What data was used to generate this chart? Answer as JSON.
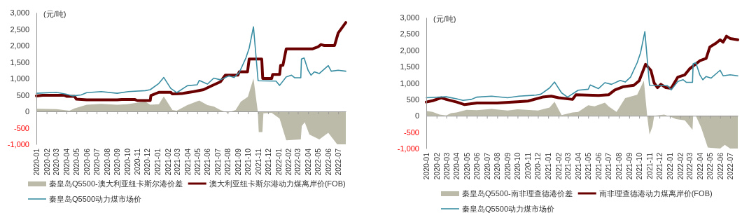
{
  "chart_data": [
    {
      "type": "line",
      "ylabel": "(元/吨)",
      "xlim": [
        "2020-01-01",
        "2022-07-24"
      ],
      "ylim": [
        -1000,
        3000
      ],
      "yticks": [
        {
          "value": -1000,
          "label": "-1,000"
        },
        -500,
        0,
        500,
        {
          "value": 1000,
          "label": "1,000"
        },
        {
          "value": 1500,
          "label": "1,500"
        },
        {
          "value": 2000,
          "label": "2,000"
        },
        {
          "value": 2500,
          "label": "2,500"
        },
        {
          "value": 3000,
          "label": "3,000"
        }
      ],
      "xticks": [
        "2020-01",
        "2020-02",
        "2020-03",
        "2020-04",
        "2020-05",
        "2020-06",
        "2020-07",
        "2020-08",
        "2020-09",
        "2020-10",
        "2020-11",
        "2020-12",
        "2021-01",
        "2021-02",
        "2021-03",
        "2021-04",
        "2021-05",
        "2021-06",
        "2021-07",
        "2021-08",
        "2021-09",
        "2021-10",
        "2021-11",
        "2021-12",
        "2022-01",
        "2022-02",
        "2022-03",
        "2022-04",
        "2022-05",
        "2022-06",
        "2022-07"
      ],
      "legend": "bottom",
      "series": [
        {
          "type": "area",
          "name": "秦皇岛Q5500-澳大利亚纽卡斯尔港价差",
          "color": "#bcbaa8",
          "x": [
            "2020-01-01",
            "2020-03-01",
            "2020-04-10",
            "2020-04-25",
            "2020-06-01",
            "2020-07-15",
            "2020-09-01",
            "2020-10-01",
            "2020-11-25",
            "2020-12-10",
            "2021-01-05",
            "2021-01-20",
            "2021-02-15",
            "2021-02-28",
            "2021-04-01",
            "2021-05-07",
            "2021-06-01",
            "2021-06-20",
            "2021-07-10",
            "2021-08-01",
            "2021-08-25",
            "2021-09-10",
            "2021-10-01",
            "2021-10-18",
            "2021-10-31",
            "2021-11-03",
            "2021-11-14",
            "2021-11-17",
            "2021-12-12",
            "2022-01-05",
            "2022-01-25",
            "2022-03-10",
            "2022-03-13",
            "2022-03-22",
            "2022-04-05",
            "2022-05-05",
            "2022-06-01",
            "2022-06-28",
            "2022-07-24"
          ],
          "values": [
            80,
            70,
            20,
            90,
            200,
            230,
            200,
            220,
            300,
            200,
            220,
            450,
            40,
            20,
            190,
            330,
            190,
            150,
            40,
            -40,
            40,
            300,
            440,
            1000,
            0,
            -630,
            -630,
            -60,
            -40,
            -220,
            -880,
            -850,
            -440,
            -330,
            -700,
            -850,
            -650,
            -1000,
            -1000
          ]
        },
        {
          "type": "line",
          "name": "澳大利亚纽卡斯尔港动力煤离岸价(FOB)",
          "color": "#6b0000",
          "x": [
            "2020-01-01",
            "2020-01-20",
            "2020-03-25",
            "2020-04-01",
            "2020-04-25",
            "2020-05-01",
            "2020-06-01",
            "2020-09-01",
            "2020-09-15",
            "2020-10-25",
            "2020-11-01",
            "2020-12-10",
            "2020-12-12",
            "2021-01-05",
            "2021-02-10",
            "2021-02-15",
            "2021-03-15",
            "2021-03-25",
            "2021-04-20",
            "2021-05-20",
            "2021-06-10",
            "2021-06-25",
            "2021-07-10",
            "2021-07-25",
            "2021-09-01",
            "2021-09-05",
            "2021-09-30",
            "2021-10-05",
            "2021-11-12",
            "2021-11-15",
            "2021-12-12",
            "2021-12-15",
            "2022-01-05",
            "2022-01-08",
            "2022-01-15",
            "2022-01-25",
            "2022-04-15",
            "2022-05-01",
            "2022-05-10",
            "2022-05-20",
            "2022-06-20",
            "2022-07-01",
            "2022-07-24"
          ],
          "values": [
            470,
            490,
            490,
            460,
            460,
            370,
            350,
            350,
            360,
            360,
            330,
            330,
            480,
            580,
            580,
            530,
            540,
            560,
            600,
            660,
            760,
            830,
            900,
            1100,
            1100,
            1200,
            1200,
            1590,
            1590,
            1000,
            1000,
            1120,
            1120,
            1400,
            1400,
            1900,
            1900,
            1960,
            2030,
            2000,
            2000,
            2380,
            2700
          ]
        },
        {
          "type": "line",
          "name": "秦皇岛Q5500动力煤市场价",
          "color": "#3a8ea3",
          "x": [
            "2020-01-01",
            "2020-03-01",
            "2020-04-01",
            "2020-04-20",
            "2020-05-15",
            "2020-06-01",
            "2020-07-15",
            "2020-09-01",
            "2020-10-05",
            "2020-11-25",
            "2020-12-10",
            "2021-01-05",
            "2021-01-20",
            "2021-02-10",
            "2021-02-28",
            "2021-04-01",
            "2021-05-01",
            "2021-05-07",
            "2021-06-01",
            "2021-06-20",
            "2021-07-10",
            "2021-08-05",
            "2021-08-20",
            "2021-09-05",
            "2021-09-25",
            "2021-10-05",
            "2021-10-18",
            "2021-11-01",
            "2021-12-25",
            "2022-01-05",
            "2022-01-25",
            "2022-02-10",
            "2022-02-20",
            "2022-03-10",
            "2022-03-12",
            "2022-03-20",
            "2022-04-01",
            "2022-04-10",
            "2022-04-20",
            "2022-05-05",
            "2022-06-01",
            "2022-06-10",
            "2022-07-01",
            "2022-07-24"
          ],
          "values": [
            550,
            580,
            520,
            470,
            500,
            570,
            600,
            550,
            600,
            630,
            660,
            850,
            1030,
            700,
            570,
            780,
            810,
            940,
            830,
            1010,
            960,
            1080,
            1030,
            1180,
            1620,
            1920,
            2570,
            930,
            920,
            790,
            1050,
            1100,
            1020,
            1020,
            1590,
            1620,
            1250,
            1100,
            1200,
            1150,
            1390,
            1220,
            1250,
            1220
          ]
        }
      ]
    },
    {
      "type": "line",
      "ylabel": "(元/吨)",
      "xlim": [
        "2020-01-01",
        "2022-07-24"
      ],
      "ylim": [
        -1000,
        3000
      ],
      "yticks": [
        {
          "value": -1000,
          "label": "-1,000"
        },
        -500,
        0,
        500,
        {
          "value": 1000,
          "label": "1,000"
        },
        {
          "value": 1500,
          "label": "1,500"
        },
        {
          "value": 2000,
          "label": "2,000"
        },
        {
          "value": 2500,
          "label": "2,500"
        },
        {
          "value": 3000,
          "label": "3,000"
        }
      ],
      "xticks": [
        "2020-01",
        "2020-02",
        "2020-03",
        "2020-04",
        "2020-05",
        "2020-06",
        "2020-07",
        "2020-08",
        "2020-09",
        "2020-10",
        "2020-11",
        "2020-12",
        "2021-01",
        "2021-02",
        "2021-03",
        "2021-04",
        "2021-05",
        "2021-06",
        "2021-07",
        "2021-08",
        "2021-09",
        "2021-10",
        "2021-11",
        "2021-12",
        "2022-01",
        "2022-02",
        "2022-03",
        "2022-04",
        "2022-05",
        "2022-06",
        "2022-07"
      ],
      "legend": "bottom",
      "series": [
        {
          "type": "area",
          "name": "秦皇岛Q5500-南非理查德港价差",
          "color": "#bcbaa8",
          "x": [
            "2020-01-01",
            "2020-01-20",
            "2020-02-10",
            "2020-03-01",
            "2020-03-15",
            "2020-04-01",
            "2020-05-01",
            "2020-06-01",
            "2020-07-15",
            "2020-09-01",
            "2020-10-01",
            "2020-12-01",
            "2021-01-05",
            "2021-01-20",
            "2021-02-10",
            "2021-03-15",
            "2021-04-01",
            "2021-05-01",
            "2021-05-20",
            "2021-06-20",
            "2021-07-01",
            "2021-07-25",
            "2021-08-20",
            "2021-09-25",
            "2021-10-15",
            "2021-10-25",
            "2021-11-01",
            "2021-11-10",
            "2021-11-15",
            "2021-12-15",
            "2022-01-01",
            "2022-01-20",
            "2022-02-15",
            "2022-03-10",
            "2022-03-12",
            "2022-03-20",
            "2022-04-05",
            "2022-04-25",
            "2022-06-01",
            "2022-06-15",
            "2022-07-01",
            "2022-07-24"
          ],
          "values": [
            150,
            120,
            40,
            10,
            80,
            100,
            180,
            170,
            210,
            160,
            200,
            160,
            250,
            430,
            20,
            100,
            120,
            320,
            290,
            400,
            290,
            120,
            540,
            640,
            1070,
            0,
            -570,
            -320,
            0,
            40,
            -20,
            -100,
            -140,
            -430,
            0,
            0,
            -360,
            -970,
            -1000,
            -890,
            -1000,
            -1000
          ]
        },
        {
          "type": "line",
          "name": "南非理查德港动力煤离岸价(FOB)",
          "color": "#6b0000",
          "x": [
            "2020-01-01",
            "2020-01-20",
            "2020-02-15",
            "2020-03-01",
            "2020-04-01",
            "2020-04-25",
            "2020-06-01",
            "2020-08-01",
            "2020-10-01",
            "2020-11-01",
            "2020-12-15",
            "2021-01-10",
            "2021-02-01",
            "2021-03-15",
            "2021-03-25",
            "2021-06-01",
            "2021-07-01",
            "2021-07-20",
            "2021-08-15",
            "2021-09-15",
            "2021-10-01",
            "2021-10-20",
            "2021-11-05",
            "2021-11-15",
            "2021-11-25",
            "2021-12-05",
            "2021-12-20",
            "2022-01-05",
            "2022-01-25",
            "2022-02-15",
            "2022-03-01",
            "2022-04-01",
            "2022-04-20",
            "2022-05-01",
            "2022-05-20",
            "2022-06-01",
            "2022-06-10",
            "2022-06-20",
            "2022-07-01",
            "2022-07-24"
          ],
          "values": [
            420,
            460,
            550,
            500,
            420,
            340,
            390,
            390,
            430,
            450,
            570,
            600,
            550,
            500,
            640,
            620,
            640,
            790,
            890,
            930,
            1070,
            1570,
            1390,
            1000,
            860,
            960,
            860,
            840,
            1180,
            1250,
            1430,
            1680,
            1750,
            2100,
            2220,
            2320,
            2250,
            2430,
            2360,
            2320
          ]
        },
        {
          "type": "line",
          "name": "秦皇岛Q5500动力煤市场价",
          "color": "#3a8ea3",
          "x": [
            "2020-01-01",
            "2020-03-01",
            "2020-04-01",
            "2020-04-20",
            "2020-05-15",
            "2020-06-01",
            "2020-07-15",
            "2020-09-01",
            "2020-10-05",
            "2020-11-25",
            "2020-12-10",
            "2021-01-05",
            "2021-01-20",
            "2021-02-10",
            "2021-02-28",
            "2021-04-01",
            "2021-05-01",
            "2021-05-07",
            "2021-06-01",
            "2021-06-20",
            "2021-07-10",
            "2021-08-05",
            "2021-08-20",
            "2021-09-05",
            "2021-09-25",
            "2021-10-05",
            "2021-10-18",
            "2021-11-01",
            "2021-12-25",
            "2022-01-05",
            "2022-01-25",
            "2022-02-10",
            "2022-02-20",
            "2022-03-10",
            "2022-03-12",
            "2022-03-20",
            "2022-04-01",
            "2022-04-10",
            "2022-04-20",
            "2022-05-05",
            "2022-06-01",
            "2022-06-10",
            "2022-07-01",
            "2022-07-24"
          ],
          "values": [
            550,
            580,
            520,
            470,
            500,
            570,
            600,
            550,
            600,
            630,
            660,
            850,
            1030,
            700,
            570,
            780,
            810,
            940,
            830,
            1010,
            960,
            1080,
            1030,
            1180,
            1620,
            1920,
            2570,
            930,
            920,
            790,
            1050,
            1100,
            1020,
            1020,
            1590,
            1620,
            1250,
            1100,
            1200,
            1150,
            1390,
            1220,
            1250,
            1220
          ]
        }
      ]
    }
  ]
}
